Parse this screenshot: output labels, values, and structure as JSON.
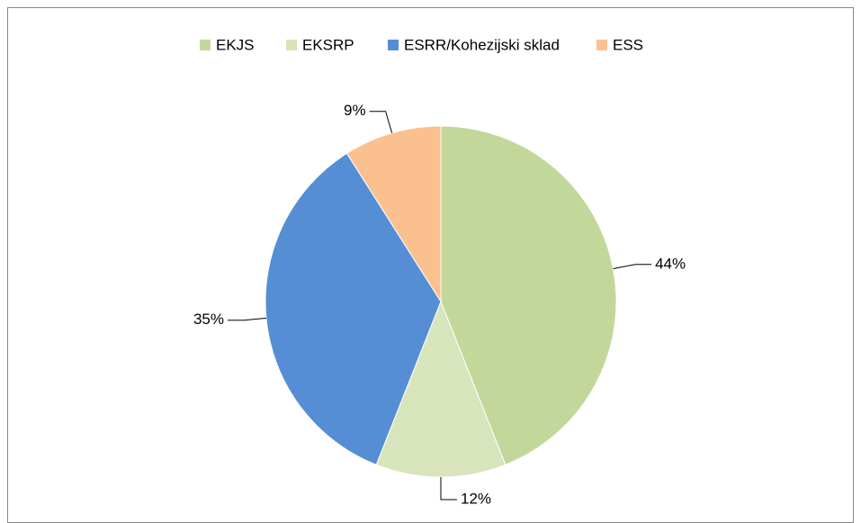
{
  "chart_data": {
    "type": "pie",
    "categories": [
      "EKJS",
      "EKSRP",
      "ESRR/Kohezijski sklad",
      "ESS"
    ],
    "values": [
      44,
      12,
      35,
      9
    ],
    "value_labels": [
      "44%",
      "12%",
      "35%",
      "9%"
    ],
    "colors": [
      "#c4d79b",
      "#d8e4bc",
      "#558ed5",
      "#fac090"
    ],
    "legend": "top"
  }
}
